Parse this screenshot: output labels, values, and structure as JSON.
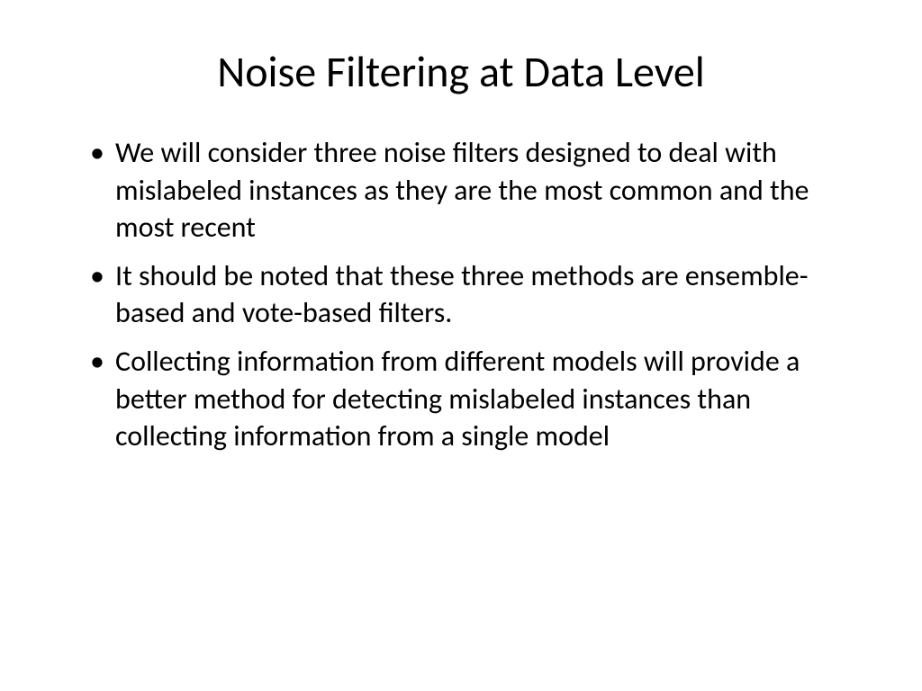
{
  "slide": {
    "title": "Noise Filtering at Data Level",
    "bullets": [
      "We will consider three noise filters designed to deal with mislabeled instances as they are the most common and the most recent",
      "It should be noted that these three methods are ensemble-based and vote-based filters.",
      "Collecting information from different models will provide a better method for detecting mislabeled instances than collecting information from a single model"
    ],
    "styling": {
      "background_color": "#ffffff",
      "text_color": "#000000",
      "title_fontsize": 48,
      "title_fontweight": 400,
      "body_fontsize": 32,
      "font_family": "Calibri",
      "bullet_marker": "•",
      "line_height": 1.3
    }
  }
}
